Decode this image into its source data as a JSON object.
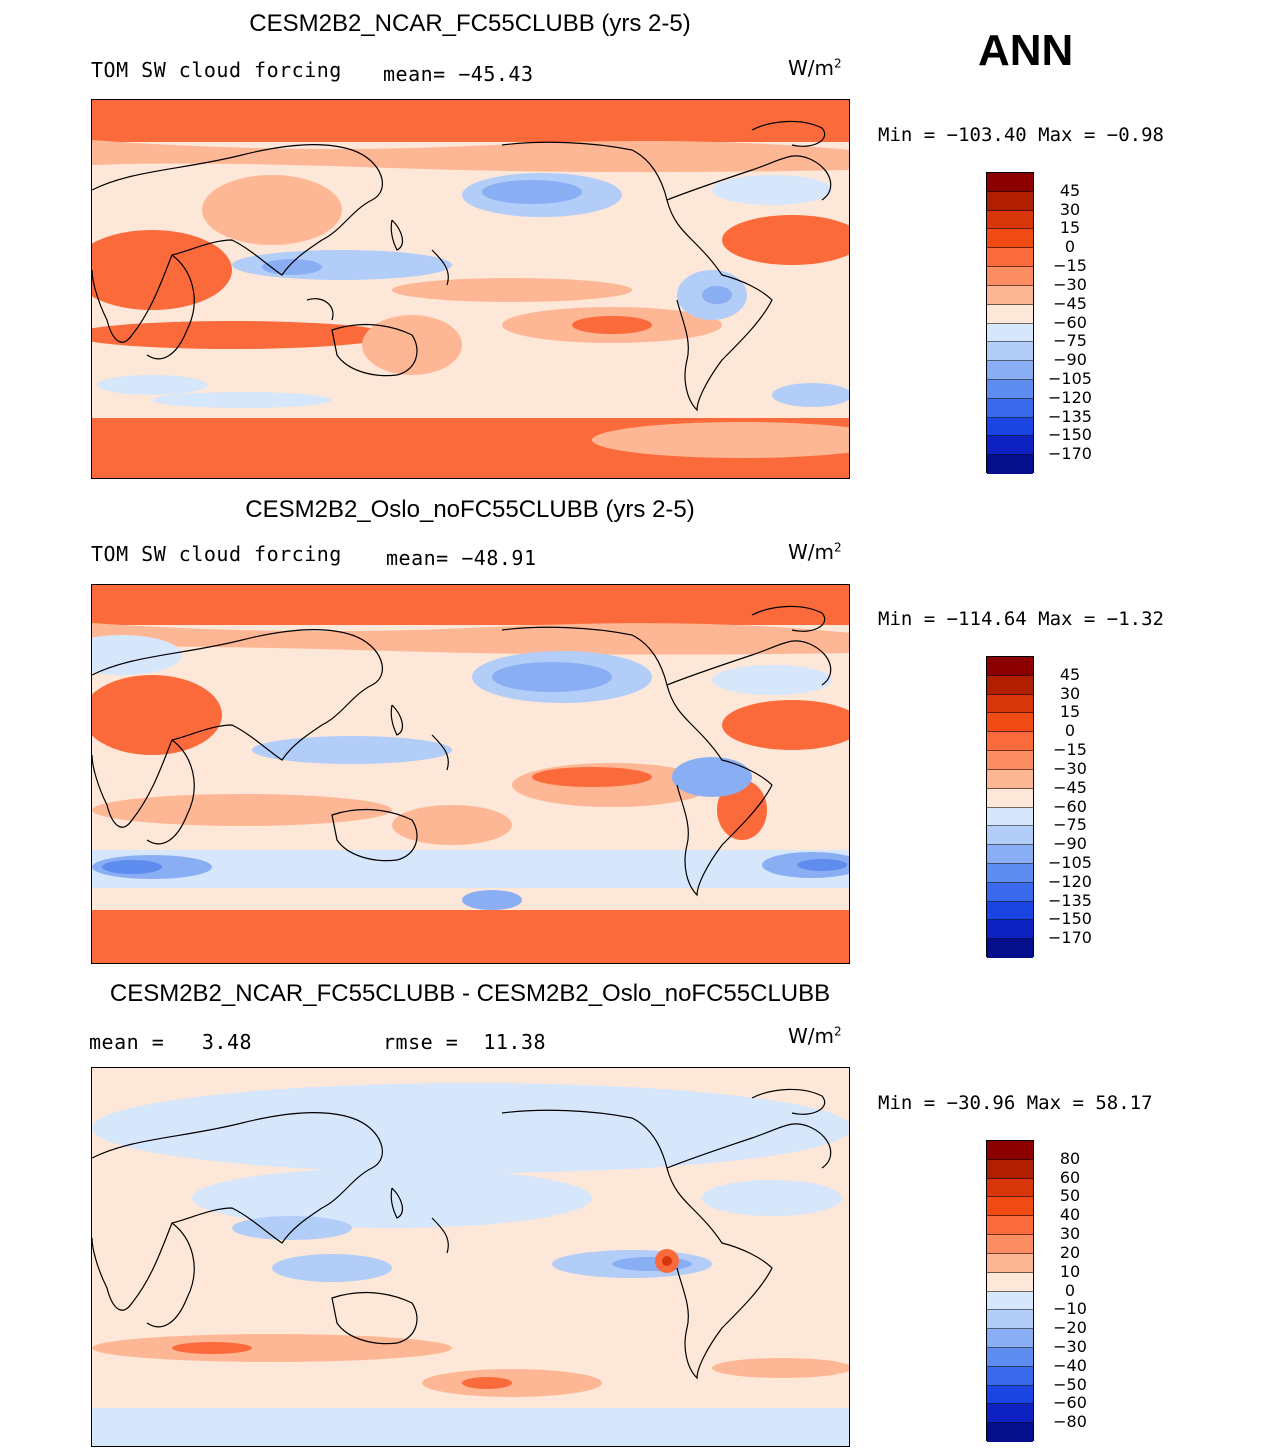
{
  "season": "ANN",
  "panels": [
    {
      "title": "CESM2B2_NCAR_FC55CLUBB (yrs 2-5)",
      "left_label": "TOM SW cloud forcing",
      "center_label": "mean= −45.43",
      "units": "W/m",
      "units_sup": "2",
      "minmax": "Min = −103.40 Max =  −0.98",
      "colorbar_labels": [
        "45",
        "30",
        "15",
        "0",
        "−15",
        "−30",
        "−45",
        "−60",
        "−75",
        "−90",
        "−105",
        "−120",
        "−135",
        "−150",
        "−170"
      ],
      "colorbar_colors": [
        "#8b0000",
        "#b01f02",
        "#d8360b",
        "#f04a15",
        "#fb6a3a",
        "#fd8e64",
        "#fdb794",
        "#fde7d8",
        "#d6e6fb",
        "#b2cdf8",
        "#8aaef3",
        "#5f8cef",
        "#3a69ec",
        "#1a45e2",
        "#0d22c0",
        "#050f8c"
      ]
    },
    {
      "title": "CESM2B2_Oslo_noFC55CLUBB (yrs 2-5)",
      "left_label": "TOM SW cloud forcing",
      "center_label": "mean= −48.91",
      "units": "W/m",
      "units_sup": "2",
      "minmax": "Min = −114.64 Max =  −1.32",
      "colorbar_labels": [
        "45",
        "30",
        "15",
        "0",
        "−15",
        "−30",
        "−45",
        "−60",
        "−75",
        "−90",
        "−105",
        "−120",
        "−135",
        "−150",
        "−170"
      ],
      "colorbar_colors": [
        "#8b0000",
        "#b01f02",
        "#d8360b",
        "#f04a15",
        "#fb6a3a",
        "#fd8e64",
        "#fdb794",
        "#fde7d8",
        "#d6e6fb",
        "#b2cdf8",
        "#8aaef3",
        "#5f8cef",
        "#3a69ec",
        "#1a45e2",
        "#0d22c0",
        "#050f8c"
      ]
    },
    {
      "title": "CESM2B2_NCAR_FC55CLUBB - CESM2B2_Oslo_noFC55CLUBB",
      "left_label": "mean =   3.48",
      "center_label": "rmse =  11.38",
      "units": "W/m",
      "units_sup": "2",
      "minmax": "Min = −30.96 Max =  58.17",
      "colorbar_labels": [
        "80",
        "60",
        "50",
        "40",
        "30",
        "20",
        "10",
        "0",
        "−10",
        "−20",
        "−30",
        "−40",
        "−50",
        "−60",
        "−80"
      ],
      "colorbar_colors": [
        "#8b0000",
        "#b01f02",
        "#d8360b",
        "#f04a15",
        "#fb6a3a",
        "#fd8e64",
        "#fdb794",
        "#fde7d8",
        "#d6e6fb",
        "#b2cdf8",
        "#8aaef3",
        "#5f8cef",
        "#3a69ec",
        "#1a45e2",
        "#0d22c0",
        "#050f8c"
      ]
    }
  ],
  "colors": {
    "ocean_light_red": "#fdb794",
    "mid_red": "#fb6a3a",
    "light_blue": "#d6e6fb",
    "mid_blue": "#8aaef3",
    "coast": "#000000"
  }
}
